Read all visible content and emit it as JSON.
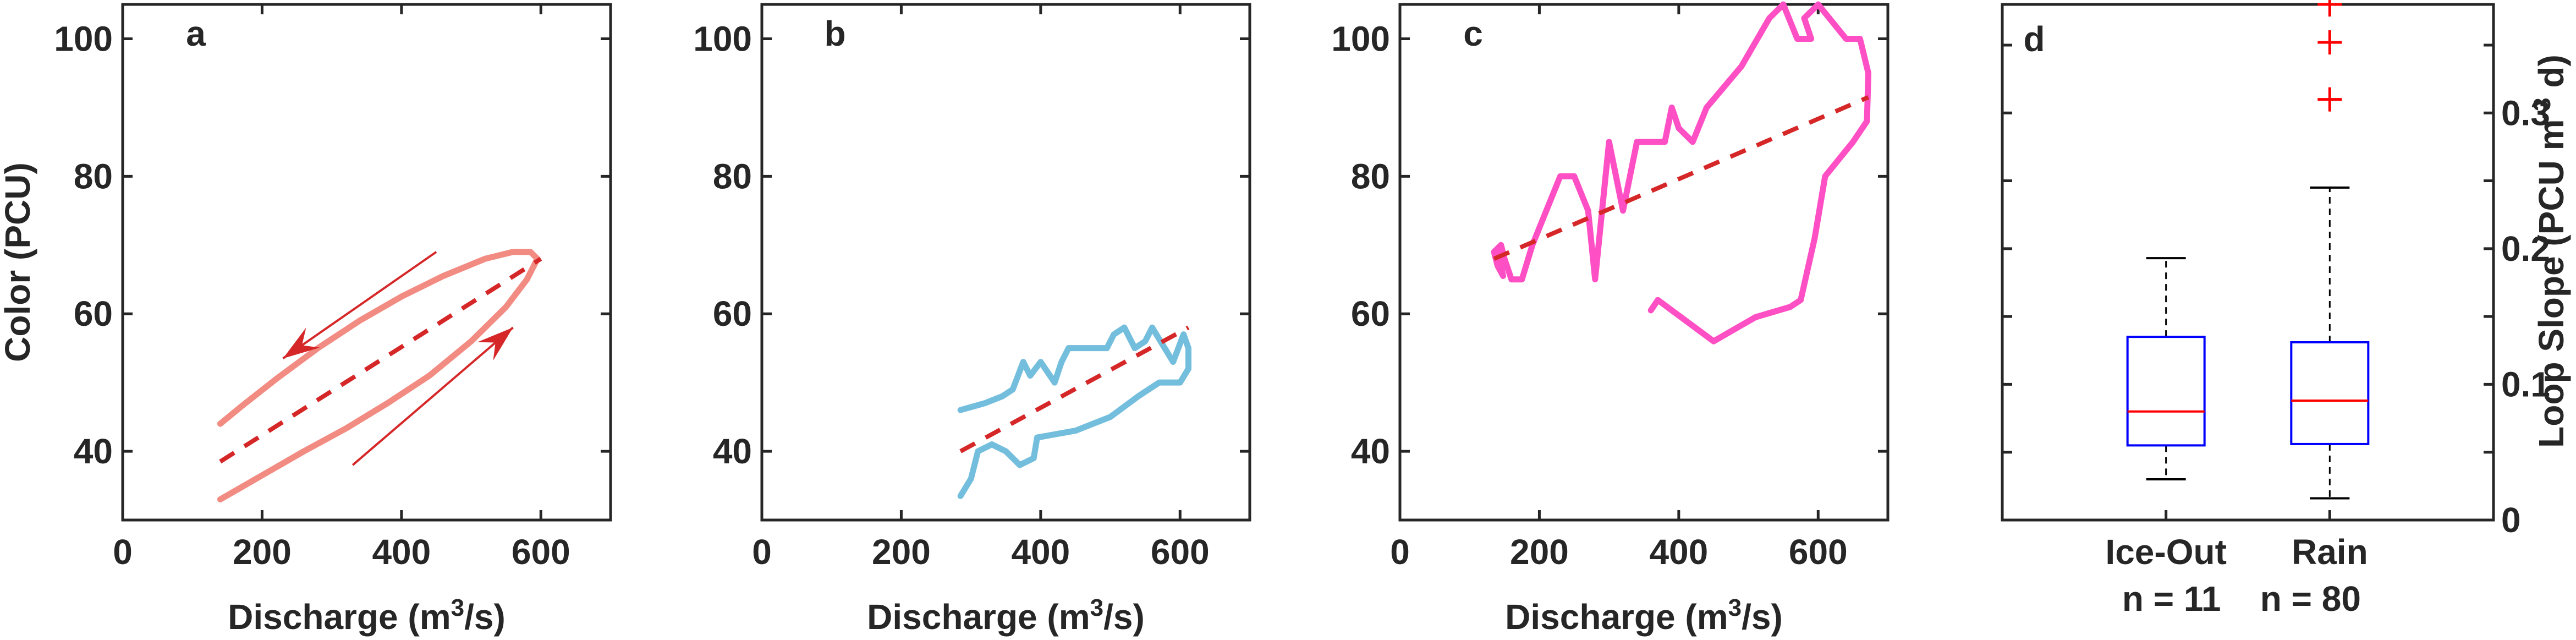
{
  "chart_data": [
    {
      "type": "line",
      "panel_label": "a",
      "xlabel": "Discharge (m",
      "xlabel_sup": "3",
      "xlabel_tail": "/s)",
      "ylabel": "Color (PCU)",
      "xlim": [
        0,
        700
      ],
      "ylim": [
        30,
        105
      ],
      "xticks": [
        0,
        200,
        400,
        600
      ],
      "xtick_labels": [
        "0",
        "200",
        "400",
        "600"
      ],
      "yticks": [
        40,
        60,
        80,
        100
      ],
      "ytick_labels": [
        "40",
        "60",
        "80",
        "100"
      ],
      "colors": {
        "loop": "#f28b82",
        "fit": "#d62728",
        "arrow": "#d62728"
      },
      "series": [
        {
          "role": "loop",
          "x": [
            140,
            200,
            260,
            320,
            380,
            440,
            500,
            550,
            580,
            595,
            585,
            560,
            520,
            460,
            400,
            340,
            280,
            220,
            170,
            140
          ],
          "y": [
            33,
            36.5,
            40,
            43.3,
            47,
            51,
            56,
            61,
            65,
            68,
            69,
            69,
            68,
            65.5,
            62.5,
            59,
            55,
            50.5,
            46.5,
            44
          ]
        },
        {
          "role": "fit",
          "x": [
            140,
            600
          ],
          "y": [
            38.5,
            68
          ]
        }
      ],
      "arrows": [
        {
          "direction": "up",
          "from": [
            330,
            38
          ],
          "to": [
            560,
            58
          ]
        },
        {
          "direction": "down",
          "from": [
            450,
            69
          ],
          "to": [
            230,
            53.5
          ]
        }
      ]
    },
    {
      "type": "line",
      "panel_label": "b",
      "xlabel": "Discharge (m",
      "xlabel_sup": "3",
      "xlabel_tail": "/s)",
      "xlim": [
        0,
        700
      ],
      "ylim": [
        30,
        105
      ],
      "xticks": [
        0,
        200,
        400,
        600
      ],
      "xtick_labels": [
        "0",
        "200",
        "400",
        "600"
      ],
      "yticks": [
        40,
        60,
        80,
        100
      ],
      "ytick_labels": [
        "40",
        "60",
        "80",
        "100"
      ],
      "colors": {
        "loop": "#74bedd",
        "fit": "#d62728"
      },
      "series": [
        {
          "role": "loop",
          "x": [
            285,
            300,
            310,
            330,
            350,
            370,
            390,
            395,
            450,
            500,
            540,
            570,
            600,
            612,
            612,
            605,
            590,
            560,
            550,
            535,
            520,
            505,
            495,
            485,
            440,
            430,
            420,
            400,
            385,
            375,
            360,
            345,
            320,
            285
          ],
          "y": [
            33.5,
            36,
            40,
            41,
            40,
            38,
            39,
            42,
            43,
            45,
            48,
            50,
            50,
            52,
            55,
            57,
            53,
            58,
            56,
            55,
            58,
            57,
            55,
            55,
            55,
            53,
            50,
            53,
            51,
            53,
            49,
            48,
            47,
            46
          ]
        },
        {
          "role": "fit",
          "x": [
            285,
            612
          ],
          "y": [
            40,
            58
          ]
        }
      ]
    },
    {
      "type": "line",
      "panel_label": "c",
      "xlabel": "Discharge (m",
      "xlabel_sup": "3",
      "xlabel_tail": "/s)",
      "xlim": [
        0,
        700
      ],
      "ylim": [
        30,
        105
      ],
      "xticks": [
        0,
        200,
        400,
        600
      ],
      "xtick_labels": [
        "0",
        "200",
        "400",
        "600"
      ],
      "yticks": [
        40,
        60,
        80,
        100
      ],
      "ytick_labels": [
        "40",
        "60",
        "80",
        "100"
      ],
      "colors": {
        "loop": "#ff4fc4",
        "fit": "#d62728"
      },
      "series": [
        {
          "role": "loop",
          "x": [
            360,
            370,
            450,
            510,
            560,
            575,
            595,
            610,
            650,
            670,
            672,
            660,
            640,
            600,
            580,
            590,
            570,
            550,
            530,
            490,
            440,
            420,
            400,
            390,
            380,
            370,
            360,
            340,
            320,
            310,
            300,
            280,
            270,
            250,
            230,
            210,
            190,
            175,
            160,
            150,
            145,
            140,
            135,
            140,
            145,
            148,
            140,
            135
          ],
          "y": [
            60.5,
            62,
            56,
            59.5,
            61,
            62,
            71,
            80,
            85,
            88,
            95,
            100,
            100,
            105,
            103,
            100,
            100,
            105,
            103,
            96,
            90,
            85,
            87,
            90,
            85,
            85,
            85,
            85,
            75,
            80,
            85,
            65,
            75,
            80,
            80,
            75,
            70,
            65,
            65,
            68,
            70,
            69.5,
            69,
            69.5,
            67,
            65.5,
            67,
            69
          ]
        },
        {
          "role": "fit",
          "x": [
            135,
            672
          ],
          "y": [
            68,
            91.5
          ]
        }
      ]
    },
    {
      "type": "box",
      "panel_label": "d",
      "ylabel": "Loop Slope (PCU m",
      "ylabel_sup": "-3",
      "ylabel_tail": " d)",
      "ylim": [
        0,
        0.38
      ],
      "yticks": [
        0,
        0.1,
        0.2,
        0.3
      ],
      "ytick_labels": [
        "0",
        "0.1",
        "0.2",
        "0.3"
      ],
      "minor_yticks": [
        0.05,
        0.15,
        0.25,
        0.35
      ],
      "y_axis_side": "right",
      "categories": [
        "Ice-Out",
        "Rain"
      ],
      "counts": [
        "n = 11",
        "n = 80"
      ],
      "colors": {
        "box": "#0000ff",
        "median": "#ff0000",
        "whisker": "#000000",
        "outlier": "#ff0000"
      },
      "boxes": [
        {
          "name": "Ice-Out",
          "whisker_low": 0.03,
          "q1": 0.055,
          "median": 0.08,
          "q3": 0.135,
          "whisker_high": 0.193,
          "outliers": []
        },
        {
          "name": "Rain",
          "whisker_low": 0.016,
          "q1": 0.056,
          "median": 0.088,
          "q3": 0.131,
          "whisker_high": 0.245,
          "outliers": [
            0.31,
            0.352,
            0.38
          ]
        }
      ]
    }
  ]
}
